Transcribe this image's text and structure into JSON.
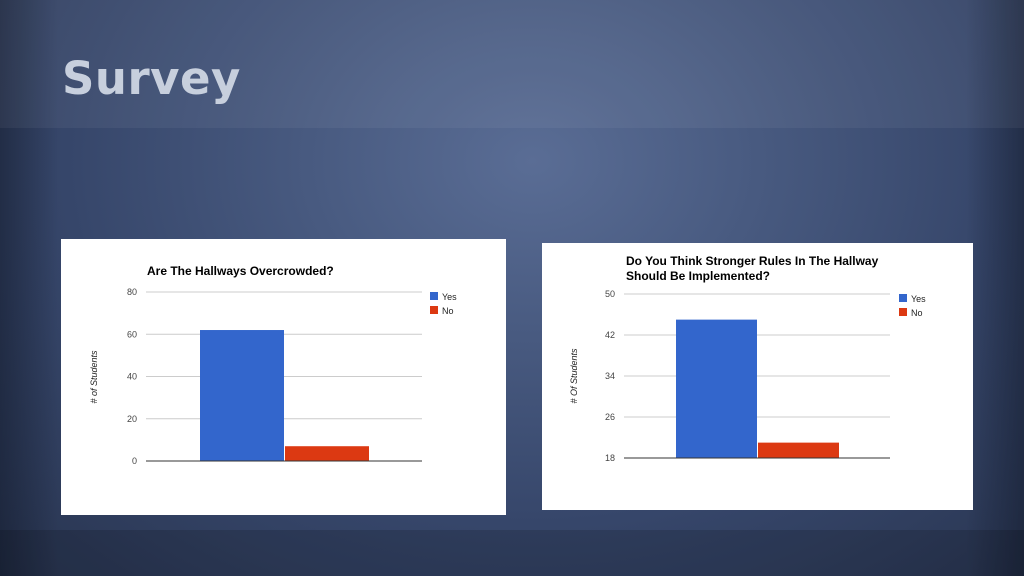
{
  "slide": {
    "title": "Survey"
  },
  "chart_data": [
    {
      "type": "bar",
      "title": "Are The Hallways Overcrowded?",
      "ylabel": "# of Students",
      "xlabel": "",
      "categories": [
        ""
      ],
      "series": [
        {
          "name": "Yes",
          "values": [
            62
          ],
          "color": "#3366cc"
        },
        {
          "name": "No",
          "values": [
            7
          ],
          "color": "#dc3912"
        }
      ],
      "ylim": [
        0,
        80
      ],
      "yticks": [
        0,
        20,
        40,
        60,
        80
      ],
      "grid": true,
      "legend": "right"
    },
    {
      "type": "bar",
      "title": "Do You Think Stronger Rules In The Hallway Should Be Implemented?",
      "title_lines": [
        "Do You Think Stronger Rules In The Hallway",
        "Should Be Implemented?"
      ],
      "ylabel": "# Of Students",
      "xlabel": "",
      "categories": [
        ""
      ],
      "series": [
        {
          "name": "Yes",
          "values": [
            45
          ],
          "color": "#3366cc"
        },
        {
          "name": "No",
          "values": [
            21
          ],
          "color": "#dc3912"
        }
      ],
      "ylim": [
        18,
        50
      ],
      "yticks": [
        18,
        26,
        34,
        42,
        50
      ],
      "grid": true,
      "legend": "right"
    }
  ]
}
